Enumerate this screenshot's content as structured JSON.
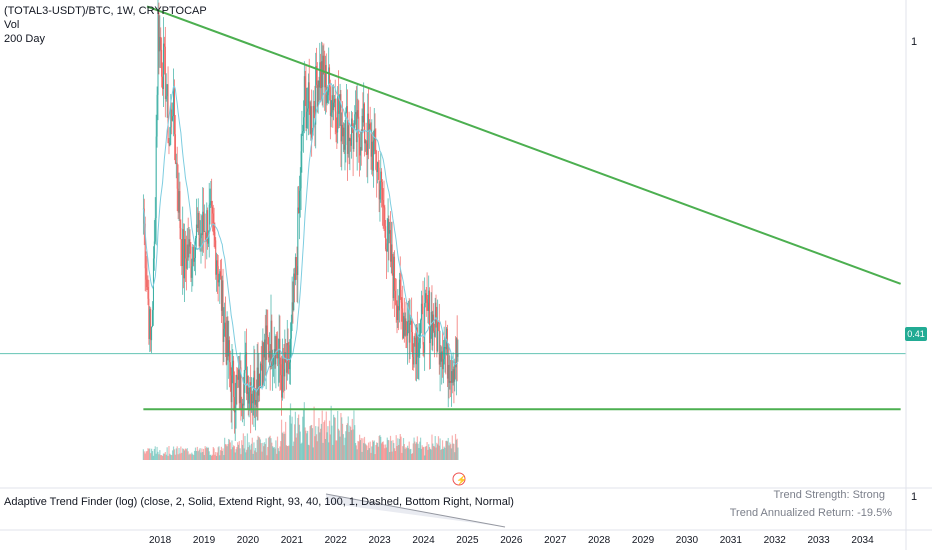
{
  "header": {
    "symbol": "(TOTAL3-USDT)/BTC, 1W, CRYPTOCAP",
    "volume_label": "Vol",
    "ma_label": "200 Day"
  },
  "indicator": {
    "label": "Adaptive Trend Finder (log) (close, 2, Solid, Extend Right, 93, 40, 100, 1, Dashed, Bottom Right, Normal)",
    "trend_strength": "Trend Strength: Strong",
    "annualized_return": "Trend Annualized Return: -19.5%"
  },
  "price_axis": {
    "top_tick": "1",
    "current_price": "0.41",
    "bottom_pane_tick": "1"
  },
  "colors": {
    "up": "#26a69a",
    "down": "#ef5350",
    "trendline": "#4caf50",
    "ma": "#7ecde0",
    "price_line": "#22ab94"
  },
  "chart_data": {
    "type": "candlestick",
    "x_axis_labels": [
      "2018",
      "2019",
      "2020",
      "2021",
      "2022",
      "2023",
      "2024",
      "2025",
      "2026",
      "2027",
      "2028",
      "2029",
      "2030",
      "2031",
      "2032",
      "2033",
      "2034"
    ],
    "y_scale": "log",
    "current_value": 0.41,
    "price_series": [
      {
        "x": "2017-09",
        "y": 0.62
      },
      {
        "x": "2017-10",
        "y": 0.5
      },
      {
        "x": "2017-11",
        "y": 0.42
      },
      {
        "x": "2017-12",
        "y": 0.55
      },
      {
        "x": "2018-01",
        "y": 1.05
      },
      {
        "x": "2018-02",
        "y": 0.95
      },
      {
        "x": "2018-03",
        "y": 0.9
      },
      {
        "x": "2018-04",
        "y": 0.75
      },
      {
        "x": "2018-05",
        "y": 0.85
      },
      {
        "x": "2018-06",
        "y": 0.7
      },
      {
        "x": "2018-07",
        "y": 0.6
      },
      {
        "x": "2018-08",
        "y": 0.53
      },
      {
        "x": "2018-09",
        "y": 0.55
      },
      {
        "x": "2018-10",
        "y": 0.54
      },
      {
        "x": "2018-11",
        "y": 0.58
      },
      {
        "x": "2018-12",
        "y": 0.57
      },
      {
        "x": "2019-01",
        "y": 0.58
      },
      {
        "x": "2019-03",
        "y": 0.6
      },
      {
        "x": "2019-05",
        "y": 0.55
      },
      {
        "x": "2019-07",
        "y": 0.45
      },
      {
        "x": "2019-09",
        "y": 0.38
      },
      {
        "x": "2019-11",
        "y": 0.37
      },
      {
        "x": "2020-01",
        "y": 0.39
      },
      {
        "x": "2020-03",
        "y": 0.37
      },
      {
        "x": "2020-05",
        "y": 0.4
      },
      {
        "x": "2020-07",
        "y": 0.42
      },
      {
        "x": "2020-09",
        "y": 0.43
      },
      {
        "x": "2020-11",
        "y": 0.38
      },
      {
        "x": "2021-01",
        "y": 0.4
      },
      {
        "x": "2021-03",
        "y": 0.55
      },
      {
        "x": "2021-05",
        "y": 0.85
      },
      {
        "x": "2021-07",
        "y": 0.8
      },
      {
        "x": "2021-09",
        "y": 0.92
      },
      {
        "x": "2021-11",
        "y": 0.88
      },
      {
        "x": "2022-01",
        "y": 0.85
      },
      {
        "x": "2022-03",
        "y": 0.8
      },
      {
        "x": "2022-05",
        "y": 0.78
      },
      {
        "x": "2022-07",
        "y": 0.76
      },
      {
        "x": "2022-09",
        "y": 0.78
      },
      {
        "x": "2022-11",
        "y": 0.75
      },
      {
        "x": "2023-01",
        "y": 0.7
      },
      {
        "x": "2023-03",
        "y": 0.6
      },
      {
        "x": "2023-05",
        "y": 0.52
      },
      {
        "x": "2023-07",
        "y": 0.47
      },
      {
        "x": "2023-09",
        "y": 0.45
      },
      {
        "x": "2023-11",
        "y": 0.43
      },
      {
        "x": "2024-01",
        "y": 0.44
      },
      {
        "x": "2024-03",
        "y": 0.46
      },
      {
        "x": "2024-05",
        "y": 0.44
      },
      {
        "x": "2024-07",
        "y": 0.42
      },
      {
        "x": "2024-09",
        "y": 0.4
      },
      {
        "x": "2024-11",
        "y": 0.41
      }
    ],
    "trendlines": [
      {
        "name": "",
        "from": {
          "x": "2017-10",
          "y": 1.1
        },
        "to": {
          "x": "2034-12",
          "y": 0.5
        }
      },
      {
        "name": "",
        "from": {
          "x": "2017-09",
          "y": 0.35
        },
        "to": {
          "x": "2034-12",
          "y": 0.35
        }
      }
    ]
  }
}
